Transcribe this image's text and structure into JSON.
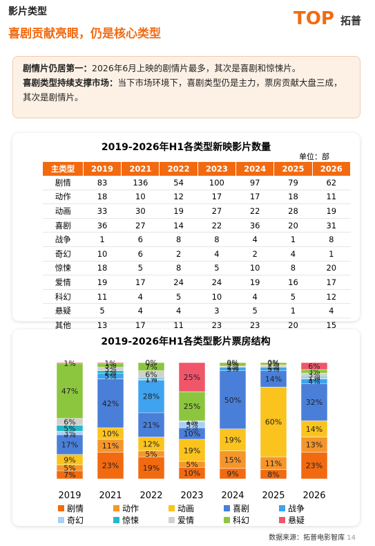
{
  "header": {
    "section": "影片类型",
    "title": "喜剧贡献亮眼，仍是核心类型",
    "logo": "TOP",
    "logo_cn": "拓普"
  },
  "summary": [
    {
      "lead": "剧情片仍居第一：",
      "text": "2026年6月上映的剧情片最多，其次是喜剧和惊悚片。"
    },
    {
      "lead": "喜剧类型持续支撑市场：",
      "text": "当下市场环境下，喜剧类型仍是主力，票房贡献大盘三成，其次是剧情片。"
    }
  ],
  "table": {
    "title": "2019-2026年H1各类型新映影片数量",
    "unit": "单位：部",
    "columns": [
      "主类型",
      "2019",
      "2021",
      "2022",
      "2023",
      "2024",
      "2025",
      "2026"
    ],
    "rows": [
      [
        "剧情",
        83,
        136,
        54,
        100,
        97,
        79,
        62
      ],
      [
        "动作",
        18,
        10,
        12,
        17,
        17,
        18,
        11
      ],
      [
        "动画",
        33,
        30,
        19,
        27,
        22,
        28,
        19
      ],
      [
        "喜剧",
        36,
        27,
        14,
        22,
        36,
        20,
        31
      ],
      [
        "战争",
        1,
        6,
        8,
        8,
        4,
        1,
        8
      ],
      [
        "奇幻",
        10,
        6,
        2,
        4,
        2,
        4,
        1
      ],
      [
        "惊悚",
        18,
        5,
        8,
        5,
        10,
        8,
        20
      ],
      [
        "爱情",
        19,
        17,
        24,
        24,
        19,
        16,
        17
      ],
      [
        "科幻",
        11,
        4,
        5,
        10,
        4,
        5,
        12
      ],
      [
        "悬疑",
        5,
        4,
        4,
        3,
        5,
        1,
        4
      ],
      [
        "其他",
        13,
        17,
        11,
        23,
        23,
        20,
        15
      ]
    ]
  },
  "chart_data": {
    "type": "stacked_bar",
    "title": "2019-2026年H1各类型影片票房结构",
    "categories": [
      "2019",
      "2021",
      "2022",
      "2023",
      "2024",
      "2025",
      "2026"
    ],
    "ylim": [
      0,
      100
    ],
    "series": [
      {
        "name": "剧情",
        "color": "#f26a10",
        "values": [
          7,
          23,
          19,
          10,
          9,
          8,
          23
        ],
        "value_labels": [
          "7%",
          "23%",
          "19%",
          "10%",
          "9%",
          "8%",
          "23%"
        ]
      },
      {
        "name": "动作",
        "color": "#f5962b",
        "values": [
          5,
          11,
          5,
          5,
          15,
          11,
          13
        ],
        "value_labels": [
          "5%",
          "11%",
          "5%",
          "5%",
          "15%",
          "11%",
          "13%"
        ]
      },
      {
        "name": "动画",
        "color": "#fbc31e",
        "values": [
          9,
          10,
          12,
          19,
          19,
          60,
          14
        ],
        "value_labels": [
          "9%",
          "10%",
          "12%",
          "19%",
          "19%",
          "60%",
          "14%"
        ]
      },
      {
        "name": "喜剧",
        "color": "#4a7fd9",
        "values": [
          17,
          42,
          21,
          10,
          50,
          14,
          32
        ],
        "value_labels": [
          "17%",
          "42%",
          "21%",
          "10%",
          "50%",
          "14%",
          "32%"
        ]
      },
      {
        "name": "战争",
        "color": "#3fa3f0",
        "values": [
          0,
          5,
          28,
          0,
          3,
          3,
          4
        ],
        "value_labels": [
          "0%",
          "5%",
          "28%",
          "0%",
          "3%",
          "3%",
          "4%"
        ]
      },
      {
        "name": "奇幻",
        "color": "#a8d0f5",
        "values": [
          3,
          0,
          1,
          5,
          0,
          0,
          1
        ],
        "value_labels": [
          "3%",
          "0%",
          "1%",
          "5%",
          "0%",
          "0%",
          "1%"
        ]
      },
      {
        "name": "惊悚",
        "color": "#24b8c9",
        "values": [
          5,
          2,
          1,
          0,
          0,
          0,
          1
        ],
        "value_labels": [
          "5%",
          "2%",
          "1%",
          "0%",
          "0%",
          "0%",
          "1%"
        ]
      },
      {
        "name": "爱情",
        "color": "#d0d0d0",
        "values": [
          6,
          3,
          6,
          1,
          1,
          2,
          3
        ],
        "value_labels": [
          "6%",
          "3%",
          "6%",
          "1%",
          "1%",
          "2%",
          "3%"
        ]
      },
      {
        "name": "科幻",
        "color": "#8cc63f",
        "values": [
          47,
          3,
          7,
          25,
          3,
          2,
          3
        ],
        "value_labels": [
          "47%",
          "3%",
          "7%",
          "25%",
          "3%",
          "2%",
          "3%"
        ]
      },
      {
        "name": "悬疑",
        "color": "#f0566a",
        "values": [
          1,
          1,
          0,
          25,
          0,
          0,
          6
        ],
        "value_labels": [
          "1%",
          "1%",
          "0%",
          "25%",
          "0%",
          "0%",
          "6%"
        ]
      }
    ]
  },
  "footer": {
    "source": "数据来源：拓普电影智库",
    "page": "14"
  }
}
